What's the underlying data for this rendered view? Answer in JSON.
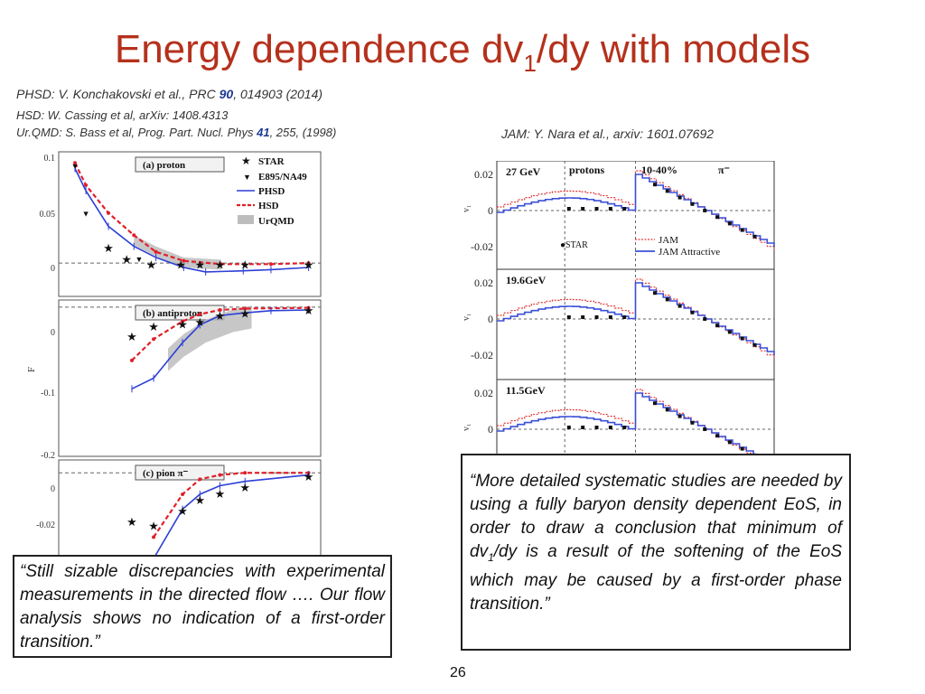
{
  "slide": {
    "title_main": "Energy dependence dv",
    "title_sub": "1",
    "title_rest": "/dy with models",
    "refs": {
      "phsd": {
        "pre": "PHSD: V. Konchakovski et al., PRC ",
        "bold": "90",
        "post": ", 014903 (2014)"
      },
      "hsd": "HSD: W. Cassing et al, arXiv: 1408.4313",
      "urqmd": {
        "pre": "Ur.QMD: S. Bass et al, Prog. Part. Nucl. Phys ",
        "bold": "41",
        "post": ", 255, (1998)"
      },
      "jam": "JAM: Y. Nara et al., arxiv: 1601.07692"
    },
    "quote_left": "“Still sizable discrepancies with experimental measurements in the directed flow …. Our flow analysis shows no indication of a first-order transition.”",
    "quote_right_a": "“More detailed systematic studies are needed by using a fully baryon density dependent EoS, in order to draw a conclusion that minimum of dv",
    "quote_right_sub": "1",
    "quote_right_b": "/dy is a result of the softening of the EoS which may be caused by a first-order phase transition.”",
    "page_number": "26"
  },
  "chart_data": [
    {
      "type": "scatter",
      "panels": [
        {
          "label": "(a) proton",
          "ylim": [
            -0.03,
            0.1
          ],
          "yticks": [
            "0.1",
            "0.05",
            "0"
          ],
          "STAR": [
            [
              5,
              0.013
            ],
            [
              7,
              0.003
            ],
            [
              11,
              -0.002
            ],
            [
              19,
              -0.002
            ],
            [
              27,
              -0.002
            ],
            [
              39,
              -0.002
            ],
            [
              62,
              -0.002
            ],
            [
              200,
              -0.002
            ]
          ],
          "E895": [
            [
              2.7,
              0.088
            ],
            [
              3.3,
              0.045
            ],
            [
              8.8,
              0.004
            ]
          ],
          "PHSD": [
            [
              2.7,
              0.085
            ],
            [
              3.3,
              0.065
            ],
            [
              5,
              0.033
            ],
            [
              8,
              0.015
            ],
            [
              12,
              0.005
            ],
            [
              20,
              -0.004
            ],
            [
              30,
              -0.008
            ],
            [
              60,
              -0.007
            ],
            [
              100,
              -0.006
            ],
            [
              200,
              -0.004
            ]
          ],
          "HSD": [
            [
              2.7,
              0.09
            ],
            [
              3.3,
              0.07
            ],
            [
              5,
              0.045
            ],
            [
              8,
              0.025
            ],
            [
              12,
              0.01
            ],
            [
              20,
              0.002
            ],
            [
              40,
              -0.001
            ],
            [
              100,
              -0.001
            ],
            [
              200,
              0.0
            ]
          ]
        },
        {
          "label": "(b) antiproton",
          "ylim": [
            -0.21,
            0.01
          ],
          "yticks": [
            "0",
            "-0.1",
            "-0.2"
          ],
          "STAR": [
            [
              7.7,
              -0.042
            ],
            [
              11.5,
              -0.028
            ],
            [
              19.6,
              -0.025
            ],
            [
              27,
              -0.022
            ],
            [
              39,
              -0.013
            ],
            [
              62,
              -0.01
            ],
            [
              200,
              -0.005
            ]
          ],
          "PHSD": [
            [
              7.7,
              -0.115
            ],
            [
              11.5,
              -0.1
            ],
            [
              19.6,
              -0.05
            ],
            [
              27,
              -0.025
            ],
            [
              39,
              -0.012
            ],
            [
              62,
              -0.008
            ],
            [
              100,
              -0.005
            ],
            [
              200,
              -0.004
            ]
          ],
          "HSD": [
            [
              7.7,
              -0.075
            ],
            [
              11.5,
              -0.045
            ],
            [
              19.6,
              -0.02
            ],
            [
              27,
              -0.01
            ],
            [
              39,
              -0.004
            ],
            [
              62,
              -0.002
            ],
            [
              200,
              -0.001
            ]
          ]
        },
        {
          "label": "(c) pion π⁻",
          "ylim": [
            -0.045,
            0.006
          ],
          "yticks": [
            "0",
            "-0.02"
          ],
          "STAR": [
            [
              7.7,
              -0.023
            ],
            [
              11.5,
              -0.025
            ],
            [
              19.6,
              -0.018
            ],
            [
              27,
              -0.013
            ],
            [
              39,
              -0.01
            ],
            [
              62,
              -0.007
            ],
            [
              200,
              -0.002
            ]
          ],
          "PHSD": [
            [
              11.5,
              -0.04
            ],
            [
              19.6,
              -0.017
            ],
            [
              27,
              -0.01
            ],
            [
              39,
              -0.006
            ],
            [
              62,
              -0.004
            ],
            [
              200,
              -0.001
            ]
          ],
          "HSD": [
            [
              11.5,
              -0.03
            ],
            [
              19.6,
              -0.01
            ],
            [
              27,
              -0.003
            ],
            [
              39,
              -0.001
            ],
            [
              62,
              0.0
            ],
            [
              200,
              0.0
            ]
          ]
        }
      ],
      "legend": [
        "STAR",
        "E895/NA49",
        "PHSD",
        "HSD",
        "UrQMD"
      ],
      "ylabel": "F",
      "colors": {
        "STAR": "#111111",
        "PHSD": "#2c3fd6",
        "HSD": "#e0202a",
        "UrQMD": "#bdbdbd"
      }
    },
    {
      "type": "line",
      "panels": [
        {
          "energy": "27 GeV",
          "extra": [
            "protons",
            "10-40%",
            "π⁻"
          ],
          "legend": [
            "●STAR",
            "JAM",
            "JAM Attractive"
          ]
        },
        {
          "energy": "19.6GeV"
        },
        {
          "energy": "11.5GeV"
        }
      ],
      "yticks": [
        "0.02",
        "0",
        "-0.02"
      ],
      "ylabel": "v₁",
      "ylim": [
        -0.03,
        0.03
      ],
      "colors": {
        "JAM": "#e23a3a",
        "JAM Attractive": "#3a4fd8",
        "STAR": "#111111"
      }
    }
  ]
}
